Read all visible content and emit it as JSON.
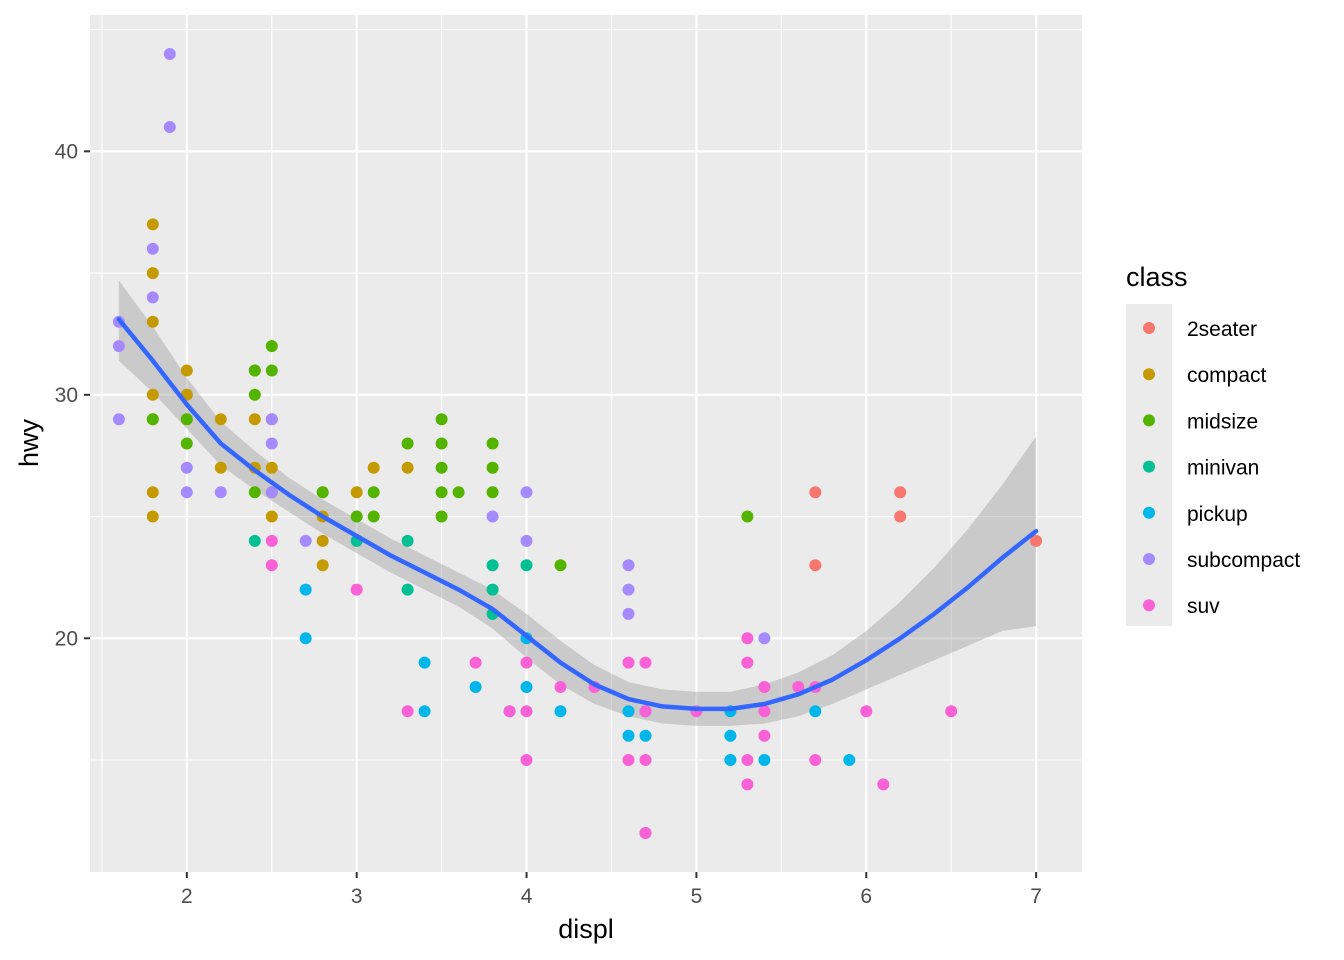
{
  "chart_data": {
    "type": "scatter",
    "title": "",
    "xlabel": "displ",
    "ylabel": "hwy",
    "xlim": [
      1.43,
      7.27
    ],
    "ylim": [
      10.4,
      45.6
    ],
    "x_ticks": [
      2,
      3,
      4,
      5,
      6,
      7
    ],
    "x_tick_labels": [
      "2",
      "3",
      "4",
      "5",
      "6",
      "7"
    ],
    "y_ticks": [
      20,
      30,
      40
    ],
    "y_tick_labels": [
      "20",
      "30",
      "40"
    ],
    "grid": true,
    "legend": {
      "title": "class",
      "position": "right",
      "entries": [
        {
          "label": "2seater",
          "color": "#F8766D"
        },
        {
          "label": "compact",
          "color": "#C49A00"
        },
        {
          "label": "midsize",
          "color": "#53B400"
        },
        {
          "label": "minivan",
          "color": "#00C094"
        },
        {
          "label": "pickup",
          "color": "#00B6EB"
        },
        {
          "label": "subcompact",
          "color": "#A58AFF"
        },
        {
          "label": "suv",
          "color": "#FB61D7"
        }
      ]
    },
    "series": [
      {
        "name": "2seater",
        "points": [
          [
            5.7,
            26
          ],
          [
            5.7,
            23
          ],
          [
            6.2,
            26
          ],
          [
            6.2,
            25
          ],
          [
            7.0,
            24
          ]
        ]
      },
      {
        "name": "compact",
        "points": [
          [
            1.8,
            37
          ],
          [
            1.8,
            35
          ],
          [
            1.8,
            33
          ],
          [
            1.8,
            30
          ],
          [
            1.8,
            29
          ],
          [
            1.8,
            26
          ],
          [
            1.8,
            25
          ],
          [
            2.0,
            31
          ],
          [
            2.0,
            30
          ],
          [
            2.0,
            29
          ],
          [
            2.2,
            29
          ],
          [
            2.2,
            27
          ],
          [
            2.4,
            31
          ],
          [
            2.4,
            29
          ],
          [
            2.4,
            27
          ],
          [
            2.5,
            29
          ],
          [
            2.5,
            27
          ],
          [
            2.5,
            26
          ],
          [
            2.5,
            25
          ],
          [
            2.8,
            26
          ],
          [
            2.8,
            25
          ],
          [
            2.8,
            24
          ],
          [
            2.8,
            23
          ],
          [
            3.0,
            26
          ],
          [
            3.1,
            27
          ],
          [
            3.3,
            27
          ]
        ]
      },
      {
        "name": "midsize",
        "points": [
          [
            1.8,
            29
          ],
          [
            2.0,
            29
          ],
          [
            2.0,
            28
          ],
          [
            2.4,
            31
          ],
          [
            2.4,
            30
          ],
          [
            2.4,
            26
          ],
          [
            2.5,
            32
          ],
          [
            2.5,
            31
          ],
          [
            2.8,
            26
          ],
          [
            3.0,
            25
          ],
          [
            3.1,
            26
          ],
          [
            3.1,
            25
          ],
          [
            3.3,
            28
          ],
          [
            3.5,
            29
          ],
          [
            3.5,
            28
          ],
          [
            3.5,
            27
          ],
          [
            3.5,
            26
          ],
          [
            3.5,
            25
          ],
          [
            3.6,
            26
          ],
          [
            3.8,
            28
          ],
          [
            3.8,
            27
          ],
          [
            3.8,
            26
          ],
          [
            4.2,
            23
          ],
          [
            5.3,
            25
          ]
        ]
      },
      {
        "name": "minivan",
        "points": [
          [
            2.4,
            24
          ],
          [
            3.0,
            24
          ],
          [
            3.3,
            24
          ],
          [
            3.3,
            22
          ],
          [
            3.8,
            23
          ],
          [
            3.8,
            22
          ],
          [
            3.8,
            21
          ],
          [
            4.0,
            23
          ]
        ]
      },
      {
        "name": "pickup",
        "points": [
          [
            2.7,
            22
          ],
          [
            2.7,
            20
          ],
          [
            3.4,
            19
          ],
          [
            3.4,
            17
          ],
          [
            3.7,
            18
          ],
          [
            3.9,
            17
          ],
          [
            4.0,
            20
          ],
          [
            4.0,
            18
          ],
          [
            4.2,
            17
          ],
          [
            4.6,
            17
          ],
          [
            4.6,
            16
          ],
          [
            4.7,
            17
          ],
          [
            4.7,
            16
          ],
          [
            4.7,
            12
          ],
          [
            5.2,
            17
          ],
          [
            5.2,
            16
          ],
          [
            5.2,
            15
          ],
          [
            5.4,
            15
          ],
          [
            5.7,
            17
          ],
          [
            5.9,
            15
          ]
        ]
      },
      {
        "name": "subcompact",
        "points": [
          [
            1.6,
            33
          ],
          [
            1.6,
            32
          ],
          [
            1.6,
            29
          ],
          [
            1.8,
            36
          ],
          [
            1.8,
            34
          ],
          [
            1.9,
            44
          ],
          [
            1.9,
            41
          ],
          [
            2.0,
            27
          ],
          [
            2.0,
            26
          ],
          [
            2.2,
            26
          ],
          [
            2.5,
            29
          ],
          [
            2.5,
            28
          ],
          [
            2.5,
            26
          ],
          [
            2.7,
            24
          ],
          [
            3.8,
            25
          ],
          [
            4.0,
            26
          ],
          [
            4.0,
            24
          ],
          [
            4.6,
            23
          ],
          [
            4.6,
            22
          ],
          [
            4.6,
            21
          ],
          [
            5.4,
            20
          ]
        ]
      },
      {
        "name": "suv",
        "points": [
          [
            2.5,
            24
          ],
          [
            2.5,
            23
          ],
          [
            3.0,
            22
          ],
          [
            3.3,
            17
          ],
          [
            3.7,
            19
          ],
          [
            3.9,
            17
          ],
          [
            4.0,
            19
          ],
          [
            4.0,
            17
          ],
          [
            4.0,
            15
          ],
          [
            4.2,
            18
          ],
          [
            4.4,
            18
          ],
          [
            4.6,
            19
          ],
          [
            4.6,
            15
          ],
          [
            4.7,
            19
          ],
          [
            4.7,
            17
          ],
          [
            4.7,
            15
          ],
          [
            4.7,
            12
          ],
          [
            5.0,
            17
          ],
          [
            5.3,
            20
          ],
          [
            5.3,
            19
          ],
          [
            5.3,
            15
          ],
          [
            5.3,
            14
          ],
          [
            5.4,
            18
          ],
          [
            5.4,
            17
          ],
          [
            5.4,
            16
          ],
          [
            5.6,
            18
          ],
          [
            5.7,
            18
          ],
          [
            5.7,
            15
          ],
          [
            6.0,
            17
          ],
          [
            6.1,
            14
          ],
          [
            6.5,
            17
          ]
        ]
      }
    ],
    "smooth": {
      "method": "loess",
      "color": "#3366FF",
      "points": [
        [
          1.6,
          33.1
        ],
        [
          1.8,
          31.4
        ],
        [
          2.0,
          29.6
        ],
        [
          2.2,
          28.0
        ],
        [
          2.4,
          26.9
        ],
        [
          2.6,
          25.9
        ],
        [
          2.8,
          25.0
        ],
        [
          3.0,
          24.2
        ],
        [
          3.2,
          23.4
        ],
        [
          3.4,
          22.7
        ],
        [
          3.6,
          22.0
        ],
        [
          3.8,
          21.2
        ],
        [
          4.0,
          20.1
        ],
        [
          4.2,
          19.0
        ],
        [
          4.4,
          18.1
        ],
        [
          4.6,
          17.5
        ],
        [
          4.8,
          17.2
        ],
        [
          5.0,
          17.1
        ],
        [
          5.2,
          17.1
        ],
        [
          5.4,
          17.3
        ],
        [
          5.6,
          17.7
        ],
        [
          5.8,
          18.3
        ],
        [
          6.0,
          19.1
        ],
        [
          6.2,
          20.0
        ],
        [
          6.4,
          21.0
        ],
        [
          6.6,
          22.1
        ],
        [
          6.8,
          23.3
        ],
        [
          7.0,
          24.4
        ]
      ],
      "band": [
        [
          1.6,
          34.7,
          31.4
        ],
        [
          1.8,
          32.8,
          30.1
        ],
        [
          2.0,
          30.7,
          28.6
        ],
        [
          2.2,
          28.9,
          27.1
        ],
        [
          2.4,
          27.7,
          26.1
        ],
        [
          2.6,
          26.6,
          25.2
        ],
        [
          2.8,
          25.7,
          24.3
        ],
        [
          3.0,
          24.9,
          23.5
        ],
        [
          3.2,
          24.1,
          22.7
        ],
        [
          3.4,
          23.4,
          22.0
        ],
        [
          3.6,
          22.7,
          21.3
        ],
        [
          3.8,
          22.0,
          20.4
        ],
        [
          4.0,
          21.0,
          19.2
        ],
        [
          4.2,
          19.9,
          18.1
        ],
        [
          4.4,
          18.9,
          17.3
        ],
        [
          4.6,
          18.2,
          16.8
        ],
        [
          4.8,
          17.9,
          16.5
        ],
        [
          5.0,
          17.8,
          16.4
        ],
        [
          5.2,
          17.8,
          16.4
        ],
        [
          5.4,
          18.1,
          16.5
        ],
        [
          5.6,
          18.6,
          16.8
        ],
        [
          5.8,
          19.3,
          17.3
        ],
        [
          6.0,
          20.3,
          17.9
        ],
        [
          6.2,
          21.5,
          18.5
        ],
        [
          6.4,
          22.9,
          19.1
        ],
        [
          6.6,
          24.5,
          19.7
        ],
        [
          6.8,
          26.3,
          20.3
        ],
        [
          7.0,
          28.3,
          20.5
        ]
      ]
    }
  }
}
